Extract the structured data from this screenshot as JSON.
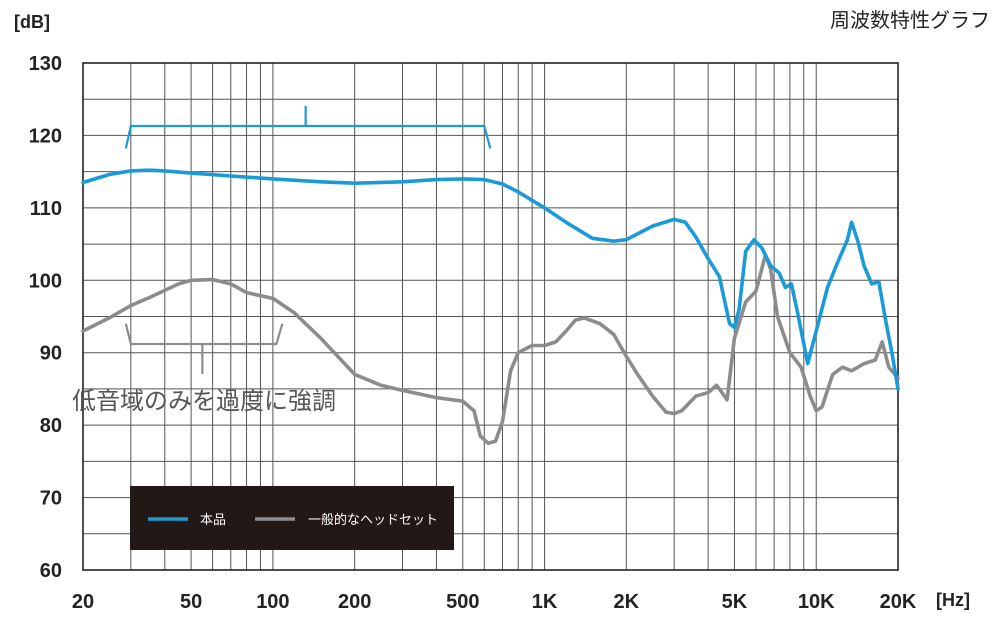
{
  "chart_data": {
    "type": "line",
    "title": "周波数特性グラフ",
    "ylabel": "[dB]",
    "xlabel": "[Hz]",
    "xscale": "log",
    "xlim": [
      20,
      20000
    ],
    "ylim": [
      60,
      130
    ],
    "grid": true,
    "legend_position": "bottom-left",
    "x_ticks": [
      {
        "value": 20,
        "label": "20"
      },
      {
        "value": 50,
        "label": "50"
      },
      {
        "value": 100,
        "label": "100"
      },
      {
        "value": 200,
        "label": "200"
      },
      {
        "value": 500,
        "label": "500"
      },
      {
        "value": 1000,
        "label": "1K"
      },
      {
        "value": 2000,
        "label": "2K"
      },
      {
        "value": 5000,
        "label": "5K"
      },
      {
        "value": 10000,
        "label": "10K"
      },
      {
        "value": 20000,
        "label": "20K"
      }
    ],
    "y_ticks": [
      60,
      70,
      80,
      90,
      100,
      110,
      120,
      130
    ],
    "series": [
      {
        "name": "本品",
        "color": "#1a9bd7",
        "points": [
          [
            20,
            113.5
          ],
          [
            25,
            114.6
          ],
          [
            30,
            115.1
          ],
          [
            35,
            115.2
          ],
          [
            40,
            115.1
          ],
          [
            50,
            114.8
          ],
          [
            70,
            114.4
          ],
          [
            100,
            114.0
          ],
          [
            150,
            113.6
          ],
          [
            200,
            113.4
          ],
          [
            300,
            113.6
          ],
          [
            400,
            113.9
          ],
          [
            500,
            114.0
          ],
          [
            600,
            113.9
          ],
          [
            700,
            113.3
          ],
          [
            800,
            112.2
          ],
          [
            1000,
            110.0
          ],
          [
            1200,
            108.0
          ],
          [
            1500,
            105.8
          ],
          [
            1800,
            105.4
          ],
          [
            2000,
            105.6
          ],
          [
            2500,
            107.5
          ],
          [
            3000,
            108.4
          ],
          [
            3300,
            108.0
          ],
          [
            3600,
            106.0
          ],
          [
            4000,
            103.0
          ],
          [
            4400,
            100.5
          ],
          [
            4800,
            94.0
          ],
          [
            5000,
            93.5
          ],
          [
            5200,
            96.0
          ],
          [
            5500,
            104.0
          ],
          [
            5900,
            105.6
          ],
          [
            6300,
            104.5
          ],
          [
            6800,
            102.0
          ],
          [
            7300,
            101.0
          ],
          [
            7700,
            99.0
          ],
          [
            8100,
            99.5
          ],
          [
            8600,
            95.0
          ],
          [
            9300,
            88.5
          ],
          [
            10000,
            93.0
          ],
          [
            11000,
            99.0
          ],
          [
            12000,
            102.5
          ],
          [
            13000,
            105.5
          ],
          [
            13500,
            108.0
          ],
          [
            14200,
            105.5
          ],
          [
            15000,
            102.0
          ],
          [
            16000,
            99.5
          ],
          [
            17000,
            99.8
          ],
          [
            18000,
            94.5
          ],
          [
            19000,
            90.0
          ],
          [
            20000,
            85.0
          ]
        ]
      },
      {
        "name": "一般的なヘッドセット",
        "color": "#8c8c8c",
        "points": [
          [
            20,
            93.0
          ],
          [
            25,
            94.8
          ],
          [
            30,
            96.5
          ],
          [
            35,
            97.6
          ],
          [
            40,
            98.6
          ],
          [
            45,
            99.5
          ],
          [
            50,
            100.0
          ],
          [
            60,
            100.1
          ],
          [
            70,
            99.5
          ],
          [
            80,
            98.3
          ],
          [
            100,
            97.5
          ],
          [
            120,
            95.5
          ],
          [
            150,
            92.0
          ],
          [
            200,
            87.0
          ],
          [
            250,
            85.5
          ],
          [
            300,
            84.8
          ],
          [
            400,
            83.8
          ],
          [
            500,
            83.3
          ],
          [
            550,
            82.0
          ],
          [
            580,
            78.5
          ],
          [
            620,
            77.5
          ],
          [
            660,
            77.8
          ],
          [
            700,
            80.5
          ],
          [
            750,
            87.5
          ],
          [
            800,
            90.0
          ],
          [
            900,
            91.0
          ],
          [
            1000,
            91.0
          ],
          [
            1100,
            91.5
          ],
          [
            1200,
            93.0
          ],
          [
            1300,
            94.5
          ],
          [
            1400,
            94.8
          ],
          [
            1600,
            94.0
          ],
          [
            1800,
            92.5
          ],
          [
            2000,
            89.5
          ],
          [
            2200,
            87.0
          ],
          [
            2500,
            84.0
          ],
          [
            2800,
            81.8
          ],
          [
            3000,
            81.6
          ],
          [
            3200,
            82.0
          ],
          [
            3600,
            84.0
          ],
          [
            4000,
            84.5
          ],
          [
            4300,
            85.5
          ],
          [
            4500,
            84.5
          ],
          [
            4700,
            83.5
          ],
          [
            5000,
            92.0
          ],
          [
            5500,
            97.0
          ],
          [
            6000,
            98.5
          ],
          [
            6500,
            103.5
          ],
          [
            6800,
            101.5
          ],
          [
            7200,
            95.0
          ],
          [
            8000,
            90.0
          ],
          [
            8800,
            88.0
          ],
          [
            9500,
            84.0
          ],
          [
            10000,
            82.0
          ],
          [
            10500,
            82.5
          ],
          [
            11500,
            87.0
          ],
          [
            12500,
            88.0
          ],
          [
            13500,
            87.5
          ],
          [
            15000,
            88.5
          ],
          [
            16500,
            89.0
          ],
          [
            17500,
            91.5
          ],
          [
            18500,
            88.0
          ],
          [
            20000,
            86.5
          ]
        ]
      }
    ],
    "annotations": [
      {
        "text": "低音域のみを過度に強調"
      }
    ]
  }
}
